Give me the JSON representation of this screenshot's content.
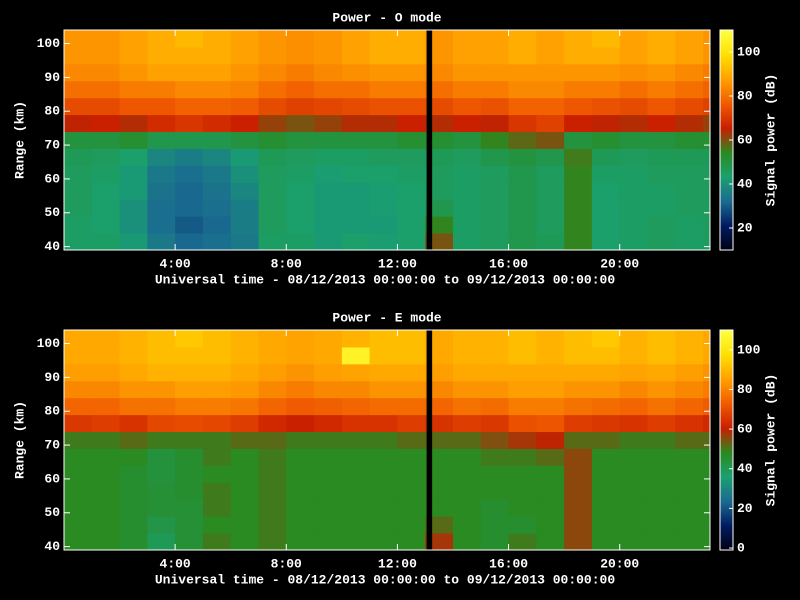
{
  "chart_data": [
    {
      "type": "heatmap",
      "title": "Power - O mode",
      "x_label": "Universal time - 08/12/2013 00:00:00 to 09/12/2013 00:00:00",
      "y_label": "Range (km)",
      "xlim": [
        0,
        23.25
      ],
      "ylim": [
        39,
        104
      ],
      "xticks": [
        {
          "value": 4,
          "label": "4:00"
        },
        {
          "value": 8,
          "label": "8:00"
        },
        {
          "value": 12,
          "label": "12:00"
        },
        {
          "value": 16,
          "label": "16:00"
        },
        {
          "value": 20,
          "label": "20:00"
        }
      ],
      "yticks": [
        40,
        50,
        60,
        70,
        80,
        90,
        100
      ],
      "x_bins": [
        0,
        1,
        2,
        3,
        4,
        5,
        6,
        7,
        8,
        9,
        10,
        11,
        12,
        13,
        14,
        15,
        16,
        17,
        18,
        19,
        20,
        21,
        22,
        23,
        23.25
      ],
      "y_bins": [
        39,
        44,
        49,
        54,
        59,
        64,
        69,
        74,
        79,
        84,
        89,
        94,
        99,
        104
      ],
      "values": [
        [
          45,
          45,
          42,
          35,
          32,
          33,
          35,
          45,
          45,
          42,
          44,
          43,
          44,
          60,
          45,
          46,
          48,
          47,
          55,
          44,
          45,
          46,
          45,
          46
        ],
        [
          45,
          44,
          40,
          33,
          30,
          32,
          36,
          46,
          44,
          42,
          42,
          42,
          44,
          55,
          45,
          46,
          48,
          46,
          55,
          44,
          45,
          46,
          45,
          46
        ],
        [
          46,
          44,
          40,
          33,
          32,
          33,
          36,
          46,
          44,
          42,
          42,
          43,
          44,
          48,
          45,
          46,
          48,
          46,
          55,
          44,
          45,
          45,
          46,
          46
        ],
        [
          46,
          44,
          42,
          34,
          32,
          34,
          38,
          46,
          44,
          42,
          42,
          43,
          44,
          46,
          45,
          46,
          48,
          46,
          55,
          44,
          45,
          45,
          46,
          46
        ],
        [
          46,
          45,
          42,
          35,
          33,
          35,
          40,
          46,
          45,
          43,
          44,
          44,
          45,
          46,
          45,
          46,
          48,
          46,
          55,
          45,
          45,
          46,
          46,
          46
        ],
        [
          47,
          46,
          44,
          38,
          36,
          38,
          42,
          47,
          46,
          45,
          45,
          46,
          46,
          47,
          46,
          48,
          50,
          48,
          56,
          47,
          46,
          47,
          47,
          47
        ],
        [
          50,
          50,
          52,
          48,
          48,
          48,
          50,
          52,
          50,
          50,
          50,
          50,
          52,
          52,
          50,
          55,
          58,
          60,
          50,
          52,
          50,
          50,
          52,
          52
        ],
        [
          65,
          66,
          64,
          68,
          70,
          68,
          66,
          62,
          60,
          62,
          64,
          64,
          66,
          64,
          66,
          65,
          70,
          72,
          66,
          65,
          64,
          66,
          64,
          62
        ],
        [
          74,
          74,
          76,
          76,
          78,
          78,
          77,
          74,
          72,
          73,
          74,
          75,
          75,
          74,
          76,
          75,
          78,
          78,
          76,
          75,
          74,
          76,
          74,
          72
        ],
        [
          80,
          80,
          82,
          82,
          84,
          84,
          83,
          80,
          78,
          80,
          80,
          82,
          82,
          80,
          82,
          82,
          84,
          84,
          82,
          82,
          80,
          82,
          80,
          78
        ],
        [
          84,
          84,
          86,
          88,
          88,
          88,
          86,
          84,
          82,
          84,
          85,
          86,
          86,
          84,
          86,
          86,
          86,
          86,
          86,
          86,
          85,
          86,
          84,
          82
        ],
        [
          86,
          86,
          88,
          90,
          90,
          90,
          88,
          86,
          85,
          86,
          88,
          90,
          90,
          86,
          88,
          88,
          90,
          88,
          90,
          90,
          88,
          90,
          88,
          86
        ],
        [
          86,
          86,
          88,
          90,
          92,
          90,
          88,
          86,
          85,
          86,
          88,
          90,
          90,
          86,
          88,
          88,
          90,
          88,
          90,
          92,
          88,
          90,
          88,
          86
        ]
      ],
      "gaps": [
        [
          13.05,
          13.25
        ]
      ],
      "colorbar": {
        "label": "Signal power (dB)",
        "lim": [
          10,
          110
        ],
        "ticks": [
          20,
          40,
          60,
          80,
          100
        ]
      },
      "colormap": [
        "#000010",
        "#001a60",
        "#1a6a90",
        "#1aa070",
        "#2a8a20",
        "#c81e00",
        "#f05a00",
        "#ffa000",
        "#ffe000",
        "#ffff40"
      ]
    },
    {
      "type": "heatmap",
      "title": "Power - E mode",
      "x_label": "Universal time - 08/12/2013 00:00:00 to 09/12/2013 00:00:00",
      "y_label": "Range (km)",
      "xlim": [
        0,
        23.25
      ],
      "ylim": [
        39,
        104
      ],
      "xticks": [
        {
          "value": 4,
          "label": "4:00"
        },
        {
          "value": 8,
          "label": "8:00"
        },
        {
          "value": 12,
          "label": "12:00"
        },
        {
          "value": 16,
          "label": "16:00"
        },
        {
          "value": 20,
          "label": "20:00"
        }
      ],
      "yticks": [
        40,
        50,
        60,
        70,
        80,
        90,
        100
      ],
      "x_bins": [
        0,
        1,
        2,
        3,
        4,
        5,
        6,
        7,
        8,
        9,
        10,
        11,
        12,
        13,
        14,
        15,
        16,
        17,
        18,
        19,
        20,
        21,
        22,
        23,
        23.25
      ],
      "y_bins": [
        39,
        44,
        49,
        54,
        59,
        64,
        69,
        74,
        79,
        84,
        89,
        94,
        99,
        104
      ],
      "values": [
        [
          48,
          48,
          46,
          40,
          45,
          50,
          48,
          50,
          48,
          48,
          48,
          48,
          48,
          58,
          48,
          46,
          50,
          48,
          56,
          48,
          48,
          48,
          48,
          48
        ],
        [
          48,
          48,
          46,
          42,
          45,
          48,
          48,
          50,
          48,
          48,
          48,
          48,
          48,
          52,
          48,
          46,
          46,
          48,
          56,
          48,
          48,
          48,
          48,
          48
        ],
        [
          48,
          48,
          46,
          45,
          45,
          50,
          48,
          50,
          48,
          48,
          48,
          48,
          48,
          48,
          48,
          46,
          48,
          48,
          56,
          48,
          48,
          48,
          48,
          48
        ],
        [
          48,
          48,
          46,
          45,
          46,
          50,
          48,
          50,
          48,
          48,
          48,
          48,
          48,
          48,
          48,
          48,
          48,
          48,
          56,
          48,
          48,
          48,
          48,
          48
        ],
        [
          48,
          48,
          46,
          44,
          46,
          48,
          48,
          50,
          48,
          48,
          48,
          48,
          48,
          48,
          48,
          48,
          48,
          48,
          56,
          48,
          48,
          48,
          48,
          48
        ],
        [
          48,
          48,
          48,
          44,
          46,
          50,
          48,
          50,
          48,
          48,
          48,
          48,
          48,
          48,
          48,
          50,
          50,
          52,
          56,
          48,
          48,
          48,
          48,
          48
        ],
        [
          50,
          50,
          52,
          50,
          50,
          50,
          52,
          52,
          50,
          50,
          50,
          50,
          52,
          52,
          52,
          55,
          58,
          60,
          52,
          52,
          50,
          50,
          52,
          52
        ],
        [
          66,
          67,
          65,
          69,
          70,
          69,
          67,
          63,
          61,
          63,
          65,
          65,
          67,
          65,
          67,
          66,
          71,
          72,
          67,
          66,
          65,
          67,
          65,
          63
        ],
        [
          75,
          75,
          77,
          77,
          79,
          79,
          78,
          75,
          73,
          74,
          75,
          76,
          76,
          75,
          77,
          76,
          79,
          79,
          77,
          76,
          75,
          77,
          75,
          73
        ],
        [
          81,
          81,
          83,
          83,
          85,
          85,
          84,
          81,
          79,
          81,
          81,
          83,
          83,
          81,
          83,
          83,
          85,
          85,
          83,
          83,
          81,
          83,
          81,
          79
        ],
        [
          85,
          85,
          87,
          89,
          89,
          89,
          87,
          85,
          83,
          85,
          86,
          87,
          87,
          85,
          87,
          87,
          87,
          87,
          87,
          87,
          86,
          87,
          85,
          83
        ],
        [
          87,
          87,
          89,
          91,
          91,
          91,
          89,
          87,
          86,
          87,
          105,
          91,
          91,
          87,
          89,
          89,
          91,
          89,
          91,
          91,
          89,
          91,
          89,
          87
        ],
        [
          87,
          87,
          89,
          91,
          93,
          91,
          89,
          87,
          86,
          87,
          89,
          91,
          91,
          87,
          89,
          89,
          91,
          89,
          91,
          93,
          89,
          91,
          89,
          87
        ]
      ],
      "gaps": [
        [
          13.05,
          13.25
        ]
      ],
      "colorbar": {
        "label": "Signal power (dB)",
        "lim": [
          -1,
          110
        ],
        "ticks": [
          0,
          20,
          40,
          60,
          80,
          100
        ]
      },
      "colormap": [
        "#000010",
        "#001a60",
        "#1a6a90",
        "#1aa070",
        "#2a8a20",
        "#c81e00",
        "#f05a00",
        "#ffa000",
        "#ffe000",
        "#ffff40"
      ]
    }
  ]
}
